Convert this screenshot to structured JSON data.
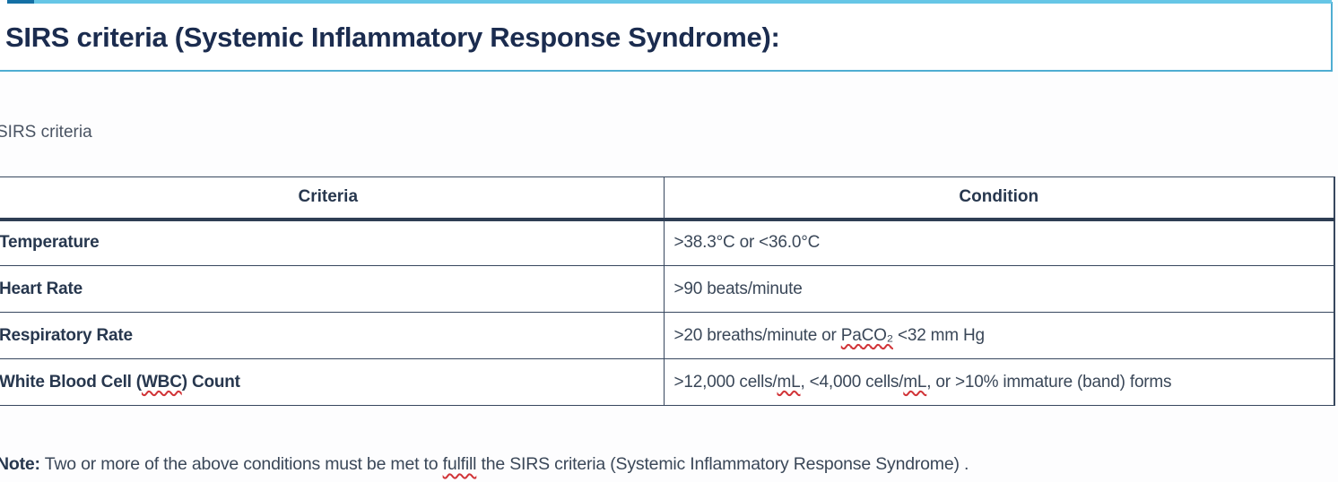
{
  "colors": {
    "title_box_border": "#4fadd2",
    "top_accent_dark": "#1470a5",
    "top_accent_light": "#66c6e6",
    "table_border": "#37475e",
    "title_text": "#1b2c4f",
    "body_text": "#3a4758",
    "spellcheck_underline": "#d13438"
  },
  "title_box": {
    "title": "SIRS criteria (Systemic Inflammatory Response Syndrome):"
  },
  "section_label": "SIRS criteria",
  "table": {
    "headers": {
      "criteria": "Criteria",
      "condition": "Condition"
    },
    "rows": [
      {
        "criteria": [
          {
            "t": "Temperature"
          }
        ],
        "condition": [
          {
            "t": ">38.3°C or <36.0°C"
          }
        ]
      },
      {
        "criteria": [
          {
            "t": "Heart Rate"
          }
        ],
        "condition": [
          {
            "t": ">90 beats/minute"
          }
        ]
      },
      {
        "criteria": [
          {
            "t": "Respiratory Rate"
          }
        ],
        "condition": [
          {
            "t": ">20 breaths/minute or "
          },
          {
            "t": "PaCO₂",
            "misspelled": true
          },
          {
            "t": " <32 mm Hg"
          }
        ]
      },
      {
        "criteria": [
          {
            "t": "White Blood Cell ("
          },
          {
            "t": "WBC",
            "misspelled": true
          },
          {
            "t": ") Count"
          }
        ],
        "condition": [
          {
            "t": ">12,000 cells/"
          },
          {
            "t": "mL",
            "misspelled": true
          },
          {
            "t": ", <4,000 cells/"
          },
          {
            "t": "mL",
            "misspelled": true
          },
          {
            "t": ", or >10% immature (band) forms"
          }
        ]
      }
    ]
  },
  "note": {
    "label": "Note:",
    "parts": [
      {
        "t": " Two or more of the above conditions must be met to "
      },
      {
        "t": "fulfill",
        "misspelled": true
      },
      {
        "t": " the SIRS criteria (Systemic Inflammatory Response Syndrome) ."
      }
    ]
  }
}
